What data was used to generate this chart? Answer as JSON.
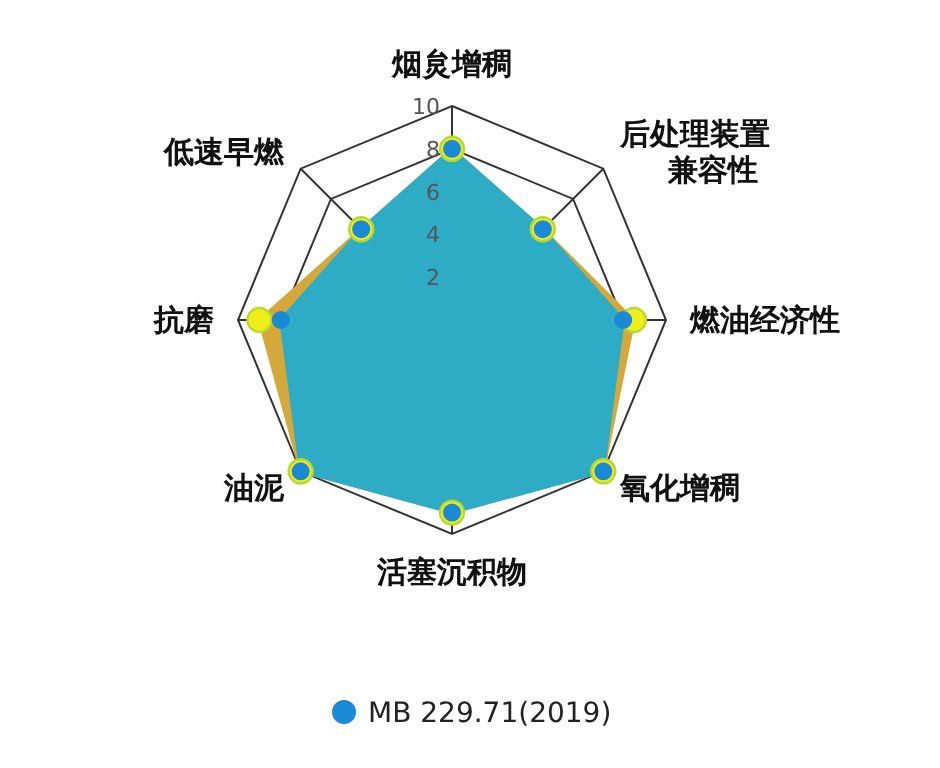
{
  "chart_data": {
    "type": "radar",
    "categories": [
      "烟炱增稠",
      "后处理装置兼容性",
      "燃油经济性",
      "氧化增稠",
      "活塞沉积物",
      "油泥",
      "抗磨",
      "低速早燃"
    ],
    "series": [
      {
        "color": "#d4a83a",
        "values": [
          8,
          6,
          8.5,
          10,
          9,
          10,
          9,
          6
        ]
      },
      {
        "name": "MB 229.71(2019)",
        "color": "#2eacc6",
        "values": [
          8,
          6,
          8,
          10,
          9,
          10,
          8,
          6
        ]
      }
    ],
    "ylim": [
      0,
      10
    ],
    "yticks": [
      2,
      4,
      6,
      8,
      10
    ],
    "marker": "circle",
    "legend": "bottom"
  }
}
